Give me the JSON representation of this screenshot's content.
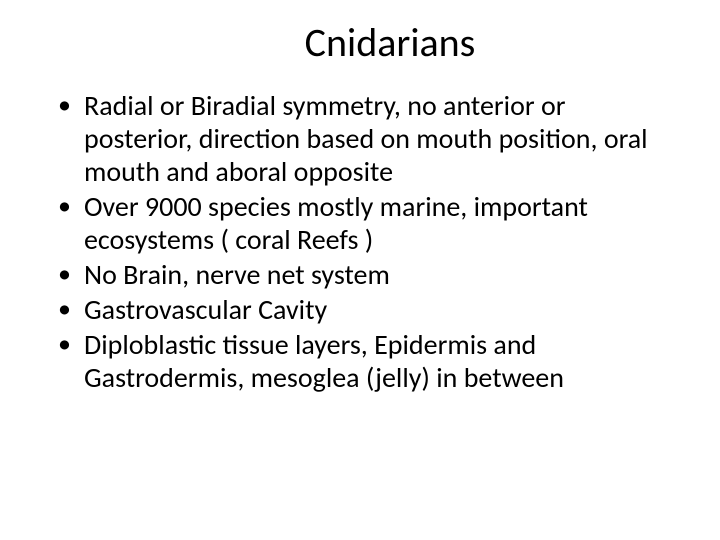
{
  "slide": {
    "title": "Cnidarians",
    "bullets": [
      "Radial or Biradial symmetry, no anterior or posterior, direction based on mouth position, oral mouth and aboral opposite",
      "Over 9000 species mostly marine, important ecosystems ( coral Reefs )",
      "No Brain, nerve net system",
      "Gastrovascular Cavity",
      " Diploblastic tissue layers, Epidermis and Gastrodermis, mesoglea (jelly) in between"
    ]
  },
  "style": {
    "background_color": "#ffffff",
    "text_color": "#000000",
    "title_fontsize": 40,
    "body_fontsize": 28,
    "font_family": "Calibri"
  }
}
